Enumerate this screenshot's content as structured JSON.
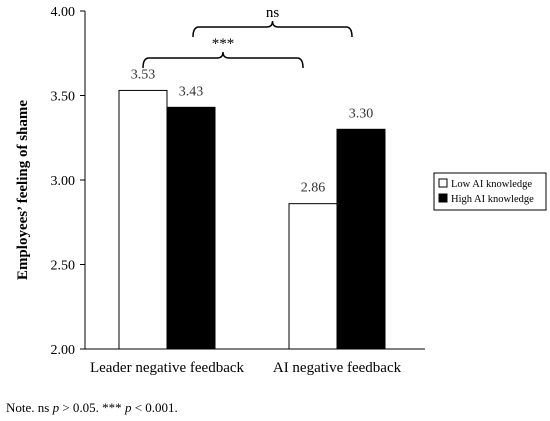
{
  "chart_data": {
    "type": "bar",
    "title": "",
    "xlabel": "",
    "ylabel": "Employees’ feeling of shame",
    "ylim": [
      2.0,
      4.0
    ],
    "yticks": [
      "2.00",
      "2.50",
      "3.00",
      "3.50",
      "4.00"
    ],
    "categories": [
      "Leader negative feedback",
      "AI negative feedback"
    ],
    "series": [
      {
        "name": "Low AI knowledge",
        "values": [
          3.53,
          2.86
        ],
        "labels": [
          "3.53",
          "2.86"
        ],
        "color": "#ffffff"
      },
      {
        "name": "High AI knowledge",
        "values": [
          3.43,
          3.3
        ],
        "labels": [
          "3.43",
          "3.30"
        ],
        "color": "#000000"
      }
    ],
    "legend_position": "right",
    "grid": false,
    "significance": [
      {
        "label": "***",
        "between": [
          "Leader negative feedback / Low AI knowledge",
          "AI negative feedback / Low AI knowledge"
        ]
      },
      {
        "label": "ns",
        "between": [
          "Leader negative feedback / High AI knowledge",
          "AI negative feedback / High AI knowledge"
        ]
      }
    ]
  },
  "note": {
    "prefix": "Note. ns ",
    "p1_symbol": "p",
    "p1_rest": " > 0.05. *** ",
    "p2_symbol": "p",
    "p2_rest": " < 0.001."
  }
}
